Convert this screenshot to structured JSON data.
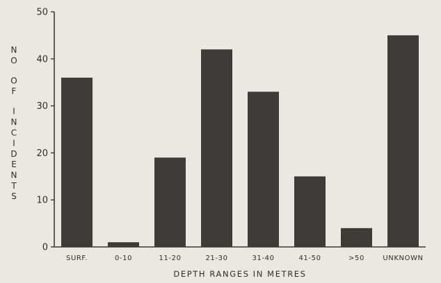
{
  "chart_data": {
    "type": "bar",
    "categories": [
      "SURF.",
      "0-10",
      "11-20",
      "21-30",
      "31-40",
      "41-50",
      ">50",
      "UNKNOWN"
    ],
    "values": [
      36,
      1,
      19,
      42,
      33,
      15,
      4,
      45
    ],
    "title": "",
    "xlabel": "DEPTH RANGES IN METRES",
    "ylabel": "NO OF INCIDENTS",
    "ylim": [
      0,
      50
    ],
    "yticks": [
      0,
      10,
      20,
      30,
      40,
      50
    ],
    "grid": false,
    "colors": {
      "bar": "#3e3b38",
      "axis": "#3a3835",
      "background": "#ece8df"
    }
  }
}
